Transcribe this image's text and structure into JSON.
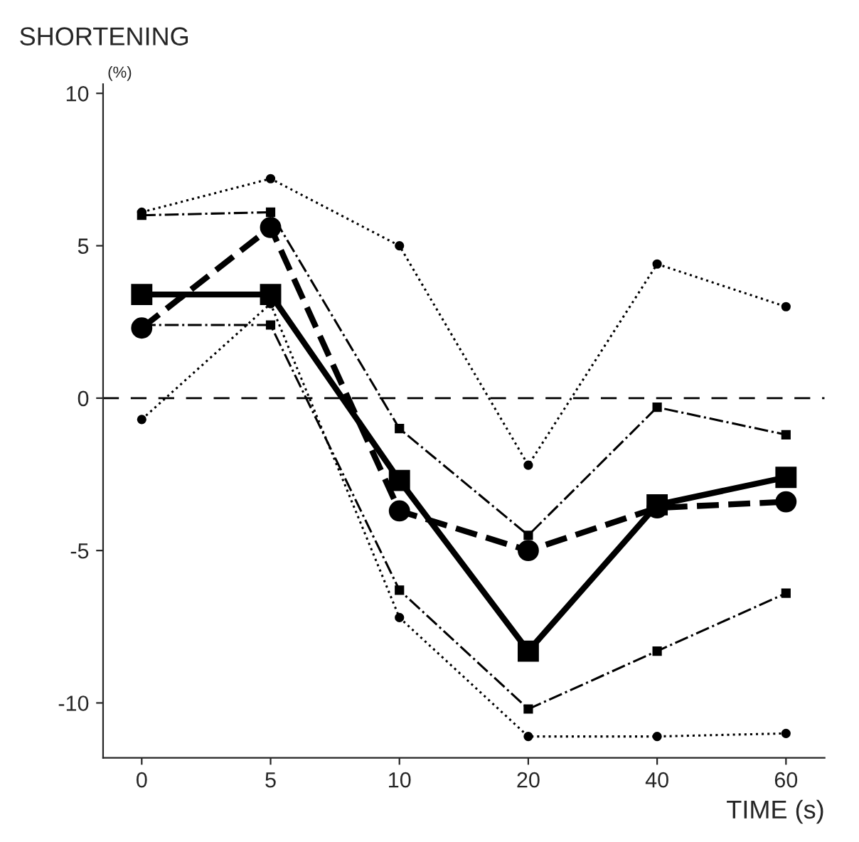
{
  "chart_data": {
    "type": "line",
    "ylabel": "SHORTENING",
    "xlabel": "TIME (s)",
    "annotations": [
      "(%)"
    ],
    "categories": [
      "0",
      "5",
      "10",
      "20",
      "40",
      "60"
    ],
    "series": [
      {
        "color": "#000000",
        "marker": "square",
        "line_style": "solid",
        "values": [
          3.4,
          3.4,
          -2.7,
          -8.3,
          -3.5,
          -2.6
        ]
      },
      {
        "color": "#000000",
        "marker": "circle",
        "line_style": "dashed",
        "values": [
          2.3,
          5.6,
          -3.7,
          -5.0,
          -3.6,
          -3.4
        ]
      },
      {
        "color": "#000000",
        "marker": "circle",
        "line_style": "dotted",
        "values": [
          6.1,
          7.2,
          5.0,
          -2.2,
          4.4,
          3.0
        ]
      },
      {
        "color": "#000000",
        "marker": "square",
        "line_style": "dashdot",
        "values": [
          6.0,
          6.1,
          -1.0,
          -4.5,
          -0.3,
          -1.2
        ]
      },
      {
        "color": "#000000",
        "marker": "square",
        "line_style": "dashdot",
        "values": [
          2.4,
          2.4,
          -6.3,
          -10.2,
          -8.3,
          -6.4
        ]
      },
      {
        "color": "#000000",
        "marker": "circle",
        "line_style": "dotted",
        "values": [
          -0.7,
          3.1,
          -7.2,
          -11.1,
          -11.1,
          -11.0
        ]
      }
    ],
    "ylim": [
      -11.8,
      10.3
    ],
    "yticks": [
      {
        "value": 10,
        "label": "10"
      },
      {
        "value": 5,
        "label": "5"
      },
      {
        "value": 0,
        "label": "0"
      },
      {
        "value": -5,
        "label": "-5"
      },
      {
        "value": -10,
        "label": "-10"
      }
    ],
    "ref_lines": [
      {
        "axis": "y",
        "value": 0,
        "line_style": "dashed",
        "color": "#000000"
      }
    ],
    "grid": false,
    "legend": false
  }
}
